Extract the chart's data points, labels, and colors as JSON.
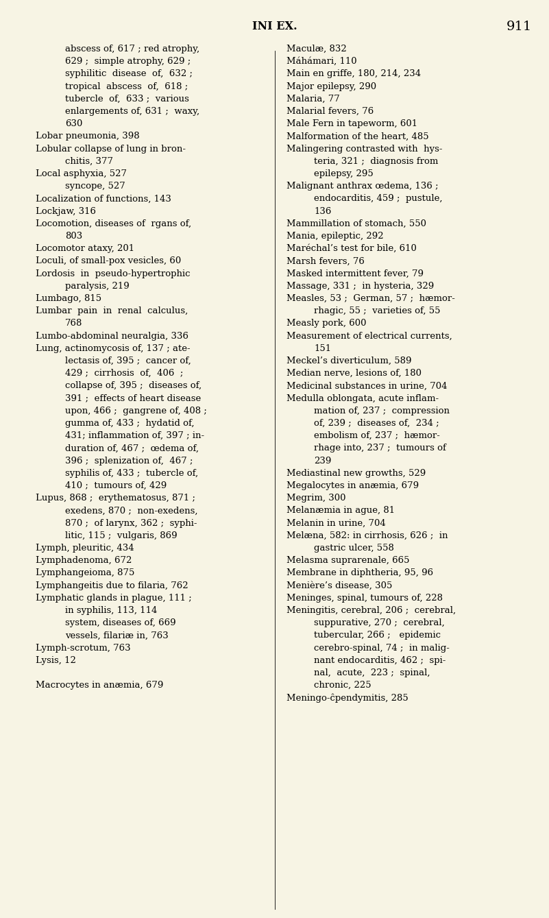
{
  "bg_color": "#f7f4e4",
  "title": "INI EX.",
  "page_num": "911",
  "title_fontsize": 11.5,
  "page_num_fontsize": 14,
  "body_fontsize": 9.5,
  "left_column": [
    {
      "indent": true,
      "text": "abscess of, 617 ; red atrophy,"
    },
    {
      "indent": true,
      "text": "629 ;  simple atrophy, 629 ;"
    },
    {
      "indent": true,
      "text": "syphilitic  disease  of,  632 ;"
    },
    {
      "indent": true,
      "text": "tropical  abscess  of,  618 ;"
    },
    {
      "indent": true,
      "text": "tubercle  of,  633 ;  various"
    },
    {
      "indent": true,
      "text": "enlargements of, 631 ;  waxy,"
    },
    {
      "indent": true,
      "text": "630"
    },
    {
      "indent": false,
      "text": "Lobar pneumonia, 398"
    },
    {
      "indent": false,
      "text": "Lobular collapse of lung in bron-"
    },
    {
      "indent": true,
      "text": "chitis, 377"
    },
    {
      "indent": false,
      "text": "Local asphyxia, 527"
    },
    {
      "indent": true,
      "text": "syncope, 527"
    },
    {
      "indent": false,
      "text": "Localization of functions, 143"
    },
    {
      "indent": false,
      "text": "Lockjaw, 316"
    },
    {
      "indent": false,
      "text": "Locomotion, diseases of  rgans of,"
    },
    {
      "indent": true,
      "text": "803"
    },
    {
      "indent": false,
      "text": "Locomotor ataxy, 201"
    },
    {
      "indent": false,
      "text": "Loculi, of small-pox vesicles, 60"
    },
    {
      "indent": false,
      "text": "Lordosis  in  pseudo-hypertrophic"
    },
    {
      "indent": true,
      "text": "paralysis, 219"
    },
    {
      "indent": false,
      "text": "Lumbago, 815"
    },
    {
      "indent": false,
      "text": "Lumbar  pain  in  renal  calculus,"
    },
    {
      "indent": true,
      "text": "768"
    },
    {
      "indent": false,
      "text": "Lumbo-abdominal neuralgia, 336"
    },
    {
      "indent": false,
      "text": "Lung, actinomycosis of, 137 ; ate-"
    },
    {
      "indent": true,
      "text": "lectasis of, 395 ;  cancer of,"
    },
    {
      "indent": true,
      "text": "429 ;  cirrhosis  of,  406  ;"
    },
    {
      "indent": true,
      "text": "collapse of, 395 ;  diseases of,"
    },
    {
      "indent": true,
      "text": "391 ;  effects of heart disease"
    },
    {
      "indent": true,
      "text": "upon, 466 ;  gangrene of, 408 ;"
    },
    {
      "indent": true,
      "text": "gumma of, 433 ;  hydatid of,"
    },
    {
      "indent": true,
      "text": "431; inflammation of, 397 ; in-"
    },
    {
      "indent": true,
      "text": "duration of, 467 ;  œdema of,"
    },
    {
      "indent": true,
      "text": "396 ;  splenization of,  467 ;"
    },
    {
      "indent": true,
      "text": "syphilis of, 433 ;  tubercle of,"
    },
    {
      "indent": true,
      "text": "410 ;  tumours of, 429"
    },
    {
      "indent": false,
      "text": "Lupus, 868 ;  erythematosus, 871 ;"
    },
    {
      "indent": true,
      "text": "exedens, 870 ;  non-exedens,"
    },
    {
      "indent": true,
      "text": "870 ;  of larynx, 362 ;  syphi-"
    },
    {
      "indent": true,
      "text": "litic, 115 ;  vulgaris, 869"
    },
    {
      "indent": false,
      "text": "Lymph, pleuritic, 434"
    },
    {
      "indent": false,
      "text": "Lymphadenoma, 672"
    },
    {
      "indent": false,
      "text": "Lymphangeioma, 875"
    },
    {
      "indent": false,
      "text": "Lymphangeitis due to filaria, 762"
    },
    {
      "indent": false,
      "text": "Lymphatic glands in plague, 111 ;"
    },
    {
      "indent": true,
      "text": "in syphilis, 113, 114"
    },
    {
      "indent": true,
      "text": "system, diseases of, 669"
    },
    {
      "indent": true,
      "text": "vessels, filariæ in, 763"
    },
    {
      "indent": false,
      "text": "Lymph-scrotum, 763"
    },
    {
      "indent": false,
      "text": "Lysis, 12"
    },
    {
      "indent": false,
      "text": ""
    },
    {
      "indent": false,
      "text": "Macrocytes in anæmia, 679"
    }
  ],
  "right_column": [
    {
      "indent": false,
      "text": "Maculæ, 832"
    },
    {
      "indent": false,
      "text": "Máhámari, 110"
    },
    {
      "indent": false,
      "text": "Main en griffe, 180, 214, 234"
    },
    {
      "indent": false,
      "text": "Major epilepsy, 290"
    },
    {
      "indent": false,
      "text": "Malaria, 77"
    },
    {
      "indent": false,
      "text": "Malarial fevers, 76"
    },
    {
      "indent": false,
      "text": "Male Fern in tapeworm, 601"
    },
    {
      "indent": false,
      "text": "Malformation of the heart, 485"
    },
    {
      "indent": false,
      "text": "Malingering contrasted with  hys-"
    },
    {
      "indent": true,
      "text": "teria, 321 ;  diagnosis from"
    },
    {
      "indent": true,
      "text": "epilepsy, 295"
    },
    {
      "indent": false,
      "text": "Malignant anthrax œdema, 136 ;"
    },
    {
      "indent": true,
      "text": "endocarditis, 459 ;  pustule,"
    },
    {
      "indent": true,
      "text": "136"
    },
    {
      "indent": false,
      "text": "Mammillation of stomach, 550"
    },
    {
      "indent": false,
      "text": "Mania, epileptic, 292"
    },
    {
      "indent": false,
      "text": "Maréchal’s test for bile, 610"
    },
    {
      "indent": false,
      "text": "Marsh fevers, 76"
    },
    {
      "indent": false,
      "text": "Masked intermittent fever, 79"
    },
    {
      "indent": false,
      "text": "Massage, 331 ;  in hysteria, 329"
    },
    {
      "indent": false,
      "text": "Measles, 53 ;  German, 57 ;  hæmor-"
    },
    {
      "indent": true,
      "text": "rhagic, 55 ;  varieties of, 55"
    },
    {
      "indent": false,
      "text": "Measly pork, 600"
    },
    {
      "indent": false,
      "text": "Measurement of electrical currents,"
    },
    {
      "indent": true,
      "text": "151"
    },
    {
      "indent": false,
      "text": "Meckel’s diverticulum, 589"
    },
    {
      "indent": false,
      "text": "Median nerve, lesions of, 180"
    },
    {
      "indent": false,
      "text": "Medicinal substances in urine, 704"
    },
    {
      "indent": false,
      "text": "Medulla oblongata, acute inflam-"
    },
    {
      "indent": true,
      "text": "mation of, 237 ;  compression"
    },
    {
      "indent": true,
      "text": "of, 239 ;  diseases of,  234 ;"
    },
    {
      "indent": true,
      "text": "embolism of, 237 ;  hæmor-"
    },
    {
      "indent": true,
      "text": "rhage into, 237 ;  tumours of"
    },
    {
      "indent": true,
      "text": "239"
    },
    {
      "indent": false,
      "text": "Mediastinal new growths, 529"
    },
    {
      "indent": false,
      "text": "Megalocytes in anæmia, 679"
    },
    {
      "indent": false,
      "text": "Megrim, 300"
    },
    {
      "indent": false,
      "text": "Melanæmia in ague, 81"
    },
    {
      "indent": false,
      "text": "Melanin in urine, 704"
    },
    {
      "indent": false,
      "text": "Melæna, 582: in cirrhosis, 626 ;  in"
    },
    {
      "indent": true,
      "text": "gastric ulcer, 558"
    },
    {
      "indent": false,
      "text": "Melasma suprarenale, 665"
    },
    {
      "indent": false,
      "text": "Membrane in diphtheria, 95, 96"
    },
    {
      "indent": false,
      "text": "Menière’s disease, 305"
    },
    {
      "indent": false,
      "text": "Meninges, spinal, tumours of, 228"
    },
    {
      "indent": false,
      "text": "Meningitis, cerebral, 206 ;  cerebral,"
    },
    {
      "indent": true,
      "text": "suppurative, 270 ;  cerebral,"
    },
    {
      "indent": true,
      "text": "tubercular, 266 ;   epidemic"
    },
    {
      "indent": true,
      "text": "cerebro-spinal, 74 ;  in malig-"
    },
    {
      "indent": true,
      "text": "nant endocarditis, 462 ;  spi-"
    },
    {
      "indent": true,
      "text": "nal,  acute,  223 ;  spinal,"
    },
    {
      "indent": true,
      "text": "chronic, 225"
    },
    {
      "indent": false,
      "text": "Meningo-ĉpendymitis, 285"
    }
  ]
}
